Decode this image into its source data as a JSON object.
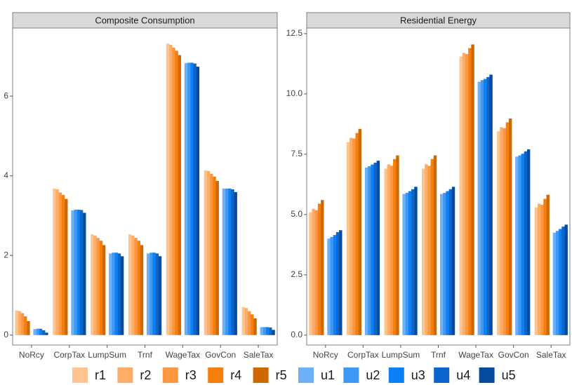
{
  "chart_data": [
    {
      "type": "bar",
      "title": "Composite Consumption",
      "categories": [
        "NoRcy",
        "CorpTax",
        "LumpSum",
        "Trnf",
        "WageTax",
        "GovCon",
        "SaleTax"
      ],
      "ylim": [
        -0.25,
        7.71
      ],
      "yticks": [
        0,
        2,
        4,
        6
      ],
      "series": [
        {
          "name": "r1",
          "color": "#fdc48f",
          "values": [
            0.62,
            3.68,
            2.53,
            2.53,
            7.32,
            4.14,
            0.7
          ]
        },
        {
          "name": "r2",
          "color": "#fdad68",
          "values": [
            0.6,
            3.66,
            2.5,
            2.5,
            7.29,
            4.12,
            0.68
          ]
        },
        {
          "name": "r3",
          "color": "#fd9640",
          "values": [
            0.55,
            3.58,
            2.44,
            2.44,
            7.22,
            4.05,
            0.6
          ]
        },
        {
          "name": "r4",
          "color": "#f57f0a",
          "values": [
            0.47,
            3.52,
            2.37,
            2.37,
            7.14,
            3.98,
            0.52
          ]
        },
        {
          "name": "r5",
          "color": "#d06800",
          "values": [
            0.35,
            3.42,
            2.26,
            2.26,
            7.03,
            3.87,
            0.42
          ]
        },
        {
          "name": "u1",
          "color": "#6cb0f8",
          "values": [
            0.15,
            3.13,
            2.05,
            2.05,
            6.83,
            3.68,
            0.2
          ]
        },
        {
          "name": "u2",
          "color": "#3d98f6",
          "values": [
            0.16,
            3.15,
            2.07,
            2.07,
            6.84,
            3.68,
            0.2
          ]
        },
        {
          "name": "u3",
          "color": "#0c80f4",
          "values": [
            0.16,
            3.15,
            2.07,
            2.07,
            6.84,
            3.68,
            0.2
          ]
        },
        {
          "name": "u4",
          "color": "#0a66cc",
          "values": [
            0.12,
            3.14,
            2.05,
            2.05,
            6.82,
            3.66,
            0.19
          ]
        },
        {
          "name": "u5",
          "color": "#034ca0",
          "values": [
            0.06,
            3.07,
            1.98,
            1.98,
            6.74,
            3.59,
            0.13
          ]
        }
      ]
    },
    {
      "type": "bar",
      "title": "Residential Energy",
      "categories": [
        "NoRcy",
        "CorpTax",
        "LumpSum",
        "Trnf",
        "WageTax",
        "GovCon",
        "SaleTax"
      ],
      "ylim": [
        -0.41,
        12.73
      ],
      "yticks": [
        {
          "value": 0,
          "label": "0.0"
        },
        2.5,
        {
          "value": 5,
          "label": "5.0"
        },
        7.5,
        {
          "value": 10,
          "label": "10.0"
        },
        12.5
      ],
      "series": [
        {
          "name": "r1",
          "color": "#fdc48f",
          "values": [
            5.09,
            8.0,
            6.9,
            6.9,
            11.55,
            8.45,
            5.3
          ]
        },
        {
          "name": "r2",
          "color": "#fdad68",
          "values": [
            5.24,
            8.18,
            7.08,
            7.08,
            11.7,
            8.62,
            5.45
          ]
        },
        {
          "name": "r3",
          "color": "#fd9640",
          "values": [
            5.18,
            8.15,
            7.02,
            7.02,
            11.65,
            8.58,
            5.4
          ]
        },
        {
          "name": "r4",
          "color": "#f57f0a",
          "values": [
            5.45,
            8.38,
            7.3,
            7.3,
            11.9,
            8.82,
            5.65
          ]
        },
        {
          "name": "r5",
          "color": "#d06800",
          "values": [
            5.6,
            8.55,
            7.45,
            7.45,
            12.05,
            8.98,
            5.82
          ]
        },
        {
          "name": "u1",
          "color": "#6cb0f8",
          "values": [
            4.0,
            6.95,
            5.85,
            5.85,
            10.5,
            7.4,
            4.25
          ]
        },
        {
          "name": "u2",
          "color": "#3d98f6",
          "values": [
            4.07,
            7.0,
            5.9,
            5.9,
            10.57,
            7.45,
            4.32
          ]
        },
        {
          "name": "u3",
          "color": "#0c80f4",
          "values": [
            4.15,
            7.07,
            5.97,
            5.97,
            10.62,
            7.52,
            4.4
          ]
        },
        {
          "name": "u4",
          "color": "#0a66cc",
          "values": [
            4.27,
            7.15,
            6.05,
            6.05,
            10.7,
            7.62,
            4.5
          ]
        },
        {
          "name": "u5",
          "color": "#034ca0",
          "values": [
            4.35,
            7.23,
            6.15,
            6.15,
            10.8,
            7.7,
            4.58
          ]
        }
      ]
    }
  ]
}
